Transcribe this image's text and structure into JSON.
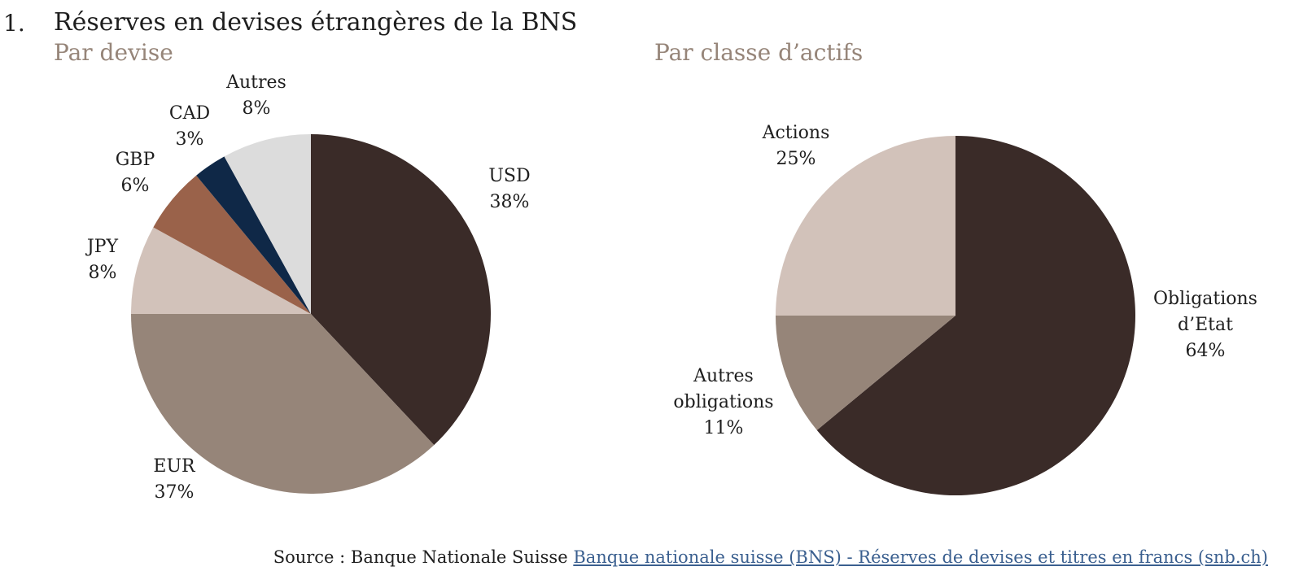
{
  "header": {
    "number": "1.",
    "title": "Réserves en devises étrangères de la BNS"
  },
  "chart_data": [
    {
      "type": "pie",
      "title": "Par devise",
      "slices": [
        {
          "label": "USD",
          "value_label": "38%",
          "value": 38,
          "color": "#3a2b28"
        },
        {
          "label": "EUR",
          "value_label": "37%",
          "value": 37,
          "color": "#968579"
        },
        {
          "label": "JPY",
          "value_label": "8%",
          "value": 8,
          "color": "#d2c2ba"
        },
        {
          "label": "GBP",
          "value_label": "6%",
          "value": 6,
          "color": "#9a624a"
        },
        {
          "label": "CAD",
          "value_label": "3%",
          "value": 3,
          "color": "#0f2847"
        },
        {
          "label": "Autres",
          "value_label": "8%",
          "value": 8,
          "color": "#dcdcdc"
        }
      ]
    },
    {
      "type": "pie",
      "title": "Par classe d’actifs",
      "slices": [
        {
          "label": "Obligations\nd’Etat",
          "value_label": "64%",
          "value": 64,
          "color": "#3a2b28"
        },
        {
          "label": "Autres\nobligations",
          "value_label": "11%",
          "value": 11,
          "color": "#968579"
        },
        {
          "label": "Actions",
          "value_label": "25%",
          "value": 25,
          "color": "#d2c2ba"
        }
      ]
    }
  ],
  "source": {
    "prefix": "Source : Banque Nationale Suisse ",
    "link_text": "Banque nationale suisse (BNS) - Réserves de devises et titres en francs (snb.ch)"
  }
}
